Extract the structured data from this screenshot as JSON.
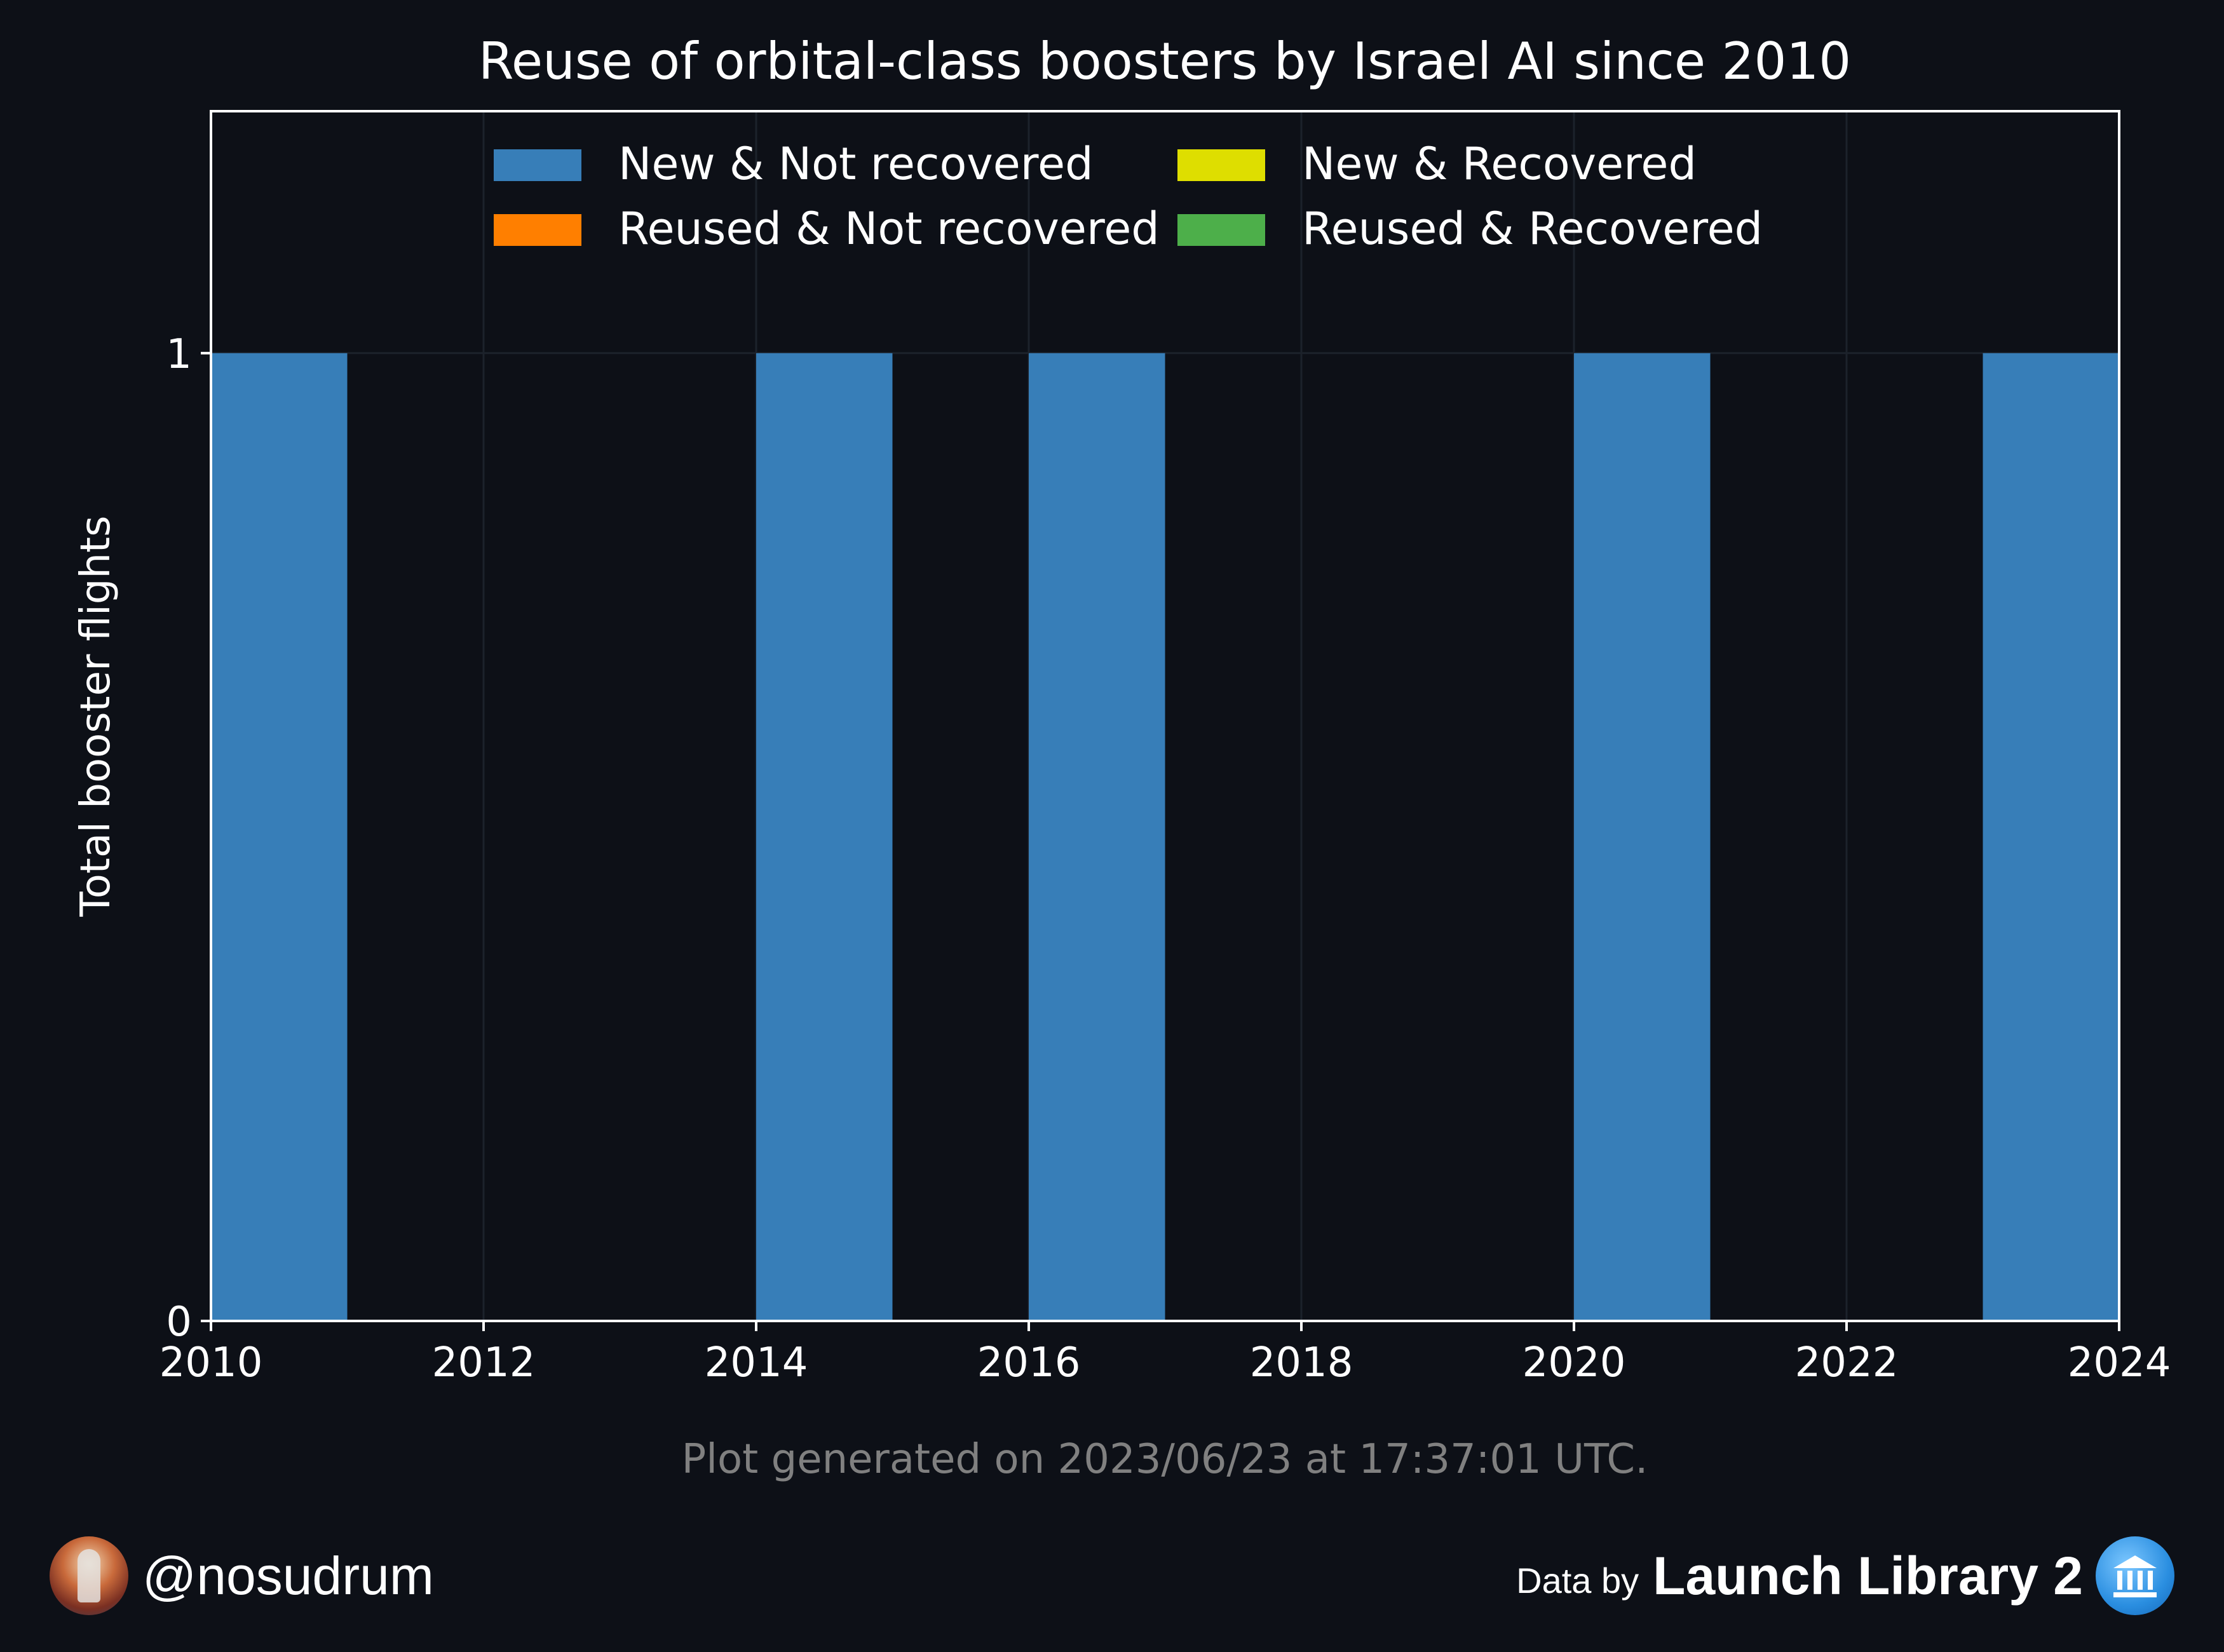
{
  "chart_data": {
    "type": "bar",
    "stacked": true,
    "title": "Reuse of orbital-class boosters by Israel AI since 2010",
    "xlabel": "",
    "ylabel": "Total booster flights",
    "xlim": [
      2010,
      2024
    ],
    "ylim": [
      0,
      1.25
    ],
    "x_ticks": [
      "2010",
      "2012",
      "2014",
      "2016",
      "2018",
      "2020",
      "2022",
      "2024"
    ],
    "y_ticks": [
      "0",
      "1"
    ],
    "categories": [
      2010,
      2011,
      2012,
      2013,
      2014,
      2015,
      2016,
      2017,
      2018,
      2019,
      2020,
      2021,
      2022,
      2023
    ],
    "series": [
      {
        "name": "New & Not recovered",
        "color": "#377eb8",
        "values": [
          1,
          0,
          0,
          0,
          1,
          0,
          1,
          0,
          0,
          0,
          1,
          0,
          0,
          1
        ]
      },
      {
        "name": "New & Recovered",
        "color": "#dede00",
        "values": [
          0,
          0,
          0,
          0,
          0,
          0,
          0,
          0,
          0,
          0,
          0,
          0,
          0,
          0
        ]
      },
      {
        "name": "Reused & Not recovered",
        "color": "#ff7f00",
        "values": [
          0,
          0,
          0,
          0,
          0,
          0,
          0,
          0,
          0,
          0,
          0,
          0,
          0,
          0
        ]
      },
      {
        "name": "Reused & Recovered",
        "color": "#4daf4a",
        "values": [
          0,
          0,
          0,
          0,
          0,
          0,
          0,
          0,
          0,
          0,
          0,
          0,
          0,
          0
        ]
      }
    ],
    "legend_order": [
      0,
      2,
      1,
      3
    ],
    "legend_position": "top-center",
    "grid": true,
    "footnote": "Plot generated on 2023/06/23 at 17:37:01 UTC."
  },
  "footer": {
    "handle": "@nosudrum",
    "data_by": "Data by",
    "source": "Launch Library 2"
  },
  "colors": {
    "background": "#0d1017",
    "axis": "#ffffff",
    "grid": "#1c222b",
    "footnote": "#808080"
  }
}
